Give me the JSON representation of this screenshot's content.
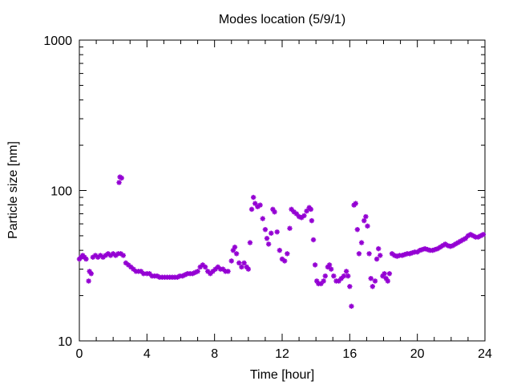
{
  "chart_data": {
    "type": "scatter",
    "title": "Modes location (5/9/1)",
    "xlabel": "Time [hour]",
    "ylabel": "Particle size [nm]",
    "xlim": [
      0,
      24
    ],
    "ylim": [
      10,
      1000
    ],
    "yscale": "log",
    "xticks": [
      0,
      4,
      8,
      12,
      16,
      20,
      24
    ],
    "xtick_labels": [
      "0",
      "4",
      "8",
      "12",
      "16",
      "20",
      "24"
    ],
    "yticks": [
      10,
      100,
      1000
    ],
    "ytick_labels": [
      "10",
      "100",
      "1000"
    ],
    "grid": false,
    "marker": "asterisk",
    "color": "#9400d3",
    "series": [
      {
        "points": [
          [
            0.0,
            35
          ],
          [
            0.1,
            36
          ],
          [
            0.2,
            37
          ],
          [
            0.3,
            36
          ],
          [
            0.4,
            35
          ],
          [
            0.55,
            25
          ],
          [
            0.6,
            29
          ],
          [
            0.7,
            28
          ],
          [
            0.8,
            36
          ],
          [
            0.95,
            37
          ],
          [
            1.1,
            36
          ],
          [
            1.25,
            37
          ],
          [
            1.4,
            36
          ],
          [
            1.55,
            37
          ],
          [
            1.7,
            38
          ],
          [
            1.85,
            37
          ],
          [
            2.0,
            38
          ],
          [
            2.15,
            37
          ],
          [
            2.3,
            38
          ],
          [
            2.45,
            38
          ],
          [
            2.6,
            37
          ],
          [
            2.35,
            113
          ],
          [
            2.4,
            123
          ],
          [
            2.5,
            121
          ],
          [
            2.75,
            33
          ],
          [
            2.9,
            32
          ],
          [
            3.05,
            31
          ],
          [
            3.2,
            30
          ],
          [
            3.35,
            29
          ],
          [
            3.5,
            29
          ],
          [
            3.65,
            29
          ],
          [
            3.8,
            28
          ],
          [
            4.0,
            28
          ],
          [
            4.15,
            28
          ],
          [
            4.3,
            27
          ],
          [
            4.45,
            27
          ],
          [
            4.6,
            27
          ],
          [
            4.75,
            26.5
          ],
          [
            4.9,
            26.5
          ],
          [
            5.05,
            26.5
          ],
          [
            5.2,
            26.5
          ],
          [
            5.35,
            26.5
          ],
          [
            5.5,
            26.5
          ],
          [
            5.65,
            26.5
          ],
          [
            5.8,
            26.5
          ],
          [
            5.95,
            27
          ],
          [
            6.1,
            27
          ],
          [
            6.25,
            27.5
          ],
          [
            6.4,
            28
          ],
          [
            6.55,
            28
          ],
          [
            6.7,
            28
          ],
          [
            6.85,
            28.5
          ],
          [
            7.0,
            29
          ],
          [
            7.15,
            31
          ],
          [
            7.3,
            32
          ],
          [
            7.45,
            31
          ],
          [
            7.6,
            29
          ],
          [
            7.75,
            28
          ],
          [
            7.9,
            29
          ],
          [
            8.05,
            30
          ],
          [
            8.2,
            31
          ],
          [
            8.35,
            30
          ],
          [
            8.5,
            30
          ],
          [
            8.65,
            29
          ],
          [
            8.8,
            29
          ],
          [
            9.0,
            34
          ],
          [
            9.1,
            40
          ],
          [
            9.2,
            42
          ],
          [
            9.3,
            38
          ],
          [
            9.45,
            33
          ],
          [
            9.6,
            31
          ],
          [
            9.75,
            33
          ],
          [
            9.9,
            31
          ],
          [
            10.0,
            30
          ],
          [
            10.1,
            45
          ],
          [
            10.2,
            75
          ],
          [
            10.3,
            90
          ],
          [
            10.4,
            82
          ],
          [
            10.55,
            78
          ],
          [
            10.7,
            80
          ],
          [
            10.85,
            65
          ],
          [
            11.0,
            55
          ],
          [
            11.1,
            48
          ],
          [
            11.2,
            44
          ],
          [
            11.35,
            52
          ],
          [
            11.45,
            75
          ],
          [
            11.55,
            72
          ],
          [
            11.7,
            53
          ],
          [
            11.85,
            40
          ],
          [
            12.0,
            35
          ],
          [
            12.15,
            34
          ],
          [
            12.3,
            38
          ],
          [
            12.45,
            56
          ],
          [
            12.55,
            75
          ],
          [
            12.7,
            72
          ],
          [
            12.85,
            70
          ],
          [
            13.0,
            67
          ],
          [
            13.15,
            66
          ],
          [
            13.3,
            68
          ],
          [
            13.45,
            73
          ],
          [
            13.6,
            77
          ],
          [
            13.7,
            75
          ],
          [
            13.75,
            63
          ],
          [
            13.85,
            47
          ],
          [
            13.95,
            32
          ],
          [
            14.05,
            25
          ],
          [
            14.15,
            24
          ],
          [
            14.3,
            24
          ],
          [
            14.45,
            25
          ],
          [
            14.55,
            27
          ],
          [
            14.7,
            31
          ],
          [
            14.8,
            32
          ],
          [
            14.9,
            30
          ],
          [
            15.05,
            27
          ],
          [
            15.2,
            25
          ],
          [
            15.35,
            25
          ],
          [
            15.5,
            26
          ],
          [
            15.65,
            27
          ],
          [
            15.8,
            29
          ],
          [
            15.9,
            27
          ],
          [
            16.0,
            23
          ],
          [
            16.1,
            17
          ],
          [
            16.25,
            80
          ],
          [
            16.35,
            82
          ],
          [
            16.45,
            55
          ],
          [
            16.55,
            38
          ],
          [
            16.7,
            45
          ],
          [
            16.85,
            63
          ],
          [
            16.95,
            67
          ],
          [
            17.05,
            58
          ],
          [
            17.15,
            38
          ],
          [
            17.25,
            26
          ],
          [
            17.35,
            23
          ],
          [
            17.5,
            25
          ],
          [
            17.6,
            35
          ],
          [
            17.7,
            41
          ],
          [
            17.8,
            37
          ],
          [
            17.95,
            27
          ],
          [
            18.05,
            28
          ],
          [
            18.15,
            26
          ],
          [
            18.25,
            25
          ],
          [
            18.35,
            28
          ],
          [
            18.5,
            38
          ],
          [
            18.65,
            37
          ],
          [
            18.8,
            36.5
          ],
          [
            18.95,
            37
          ],
          [
            19.1,
            37
          ],
          [
            19.25,
            37.5
          ],
          [
            19.4,
            38
          ],
          [
            19.55,
            38
          ],
          [
            19.7,
            38.5
          ],
          [
            19.85,
            39
          ],
          [
            20.0,
            39
          ],
          [
            20.15,
            40
          ],
          [
            20.3,
            40.5
          ],
          [
            20.45,
            41
          ],
          [
            20.6,
            40.5
          ],
          [
            20.75,
            40
          ],
          [
            20.9,
            40
          ],
          [
            21.05,
            40.5
          ],
          [
            21.2,
            41
          ],
          [
            21.35,
            42
          ],
          [
            21.5,
            43
          ],
          [
            21.65,
            44
          ],
          [
            21.8,
            43
          ],
          [
            21.95,
            42.5
          ],
          [
            22.1,
            43
          ],
          [
            22.25,
            44
          ],
          [
            22.4,
            45
          ],
          [
            22.55,
            46
          ],
          [
            22.7,
            47
          ],
          [
            22.85,
            48
          ],
          [
            23.0,
            50
          ],
          [
            23.15,
            51
          ],
          [
            23.3,
            50
          ],
          [
            23.45,
            49
          ],
          [
            23.6,
            49
          ],
          [
            23.75,
            50
          ],
          [
            23.9,
            51
          ]
        ]
      }
    ]
  }
}
